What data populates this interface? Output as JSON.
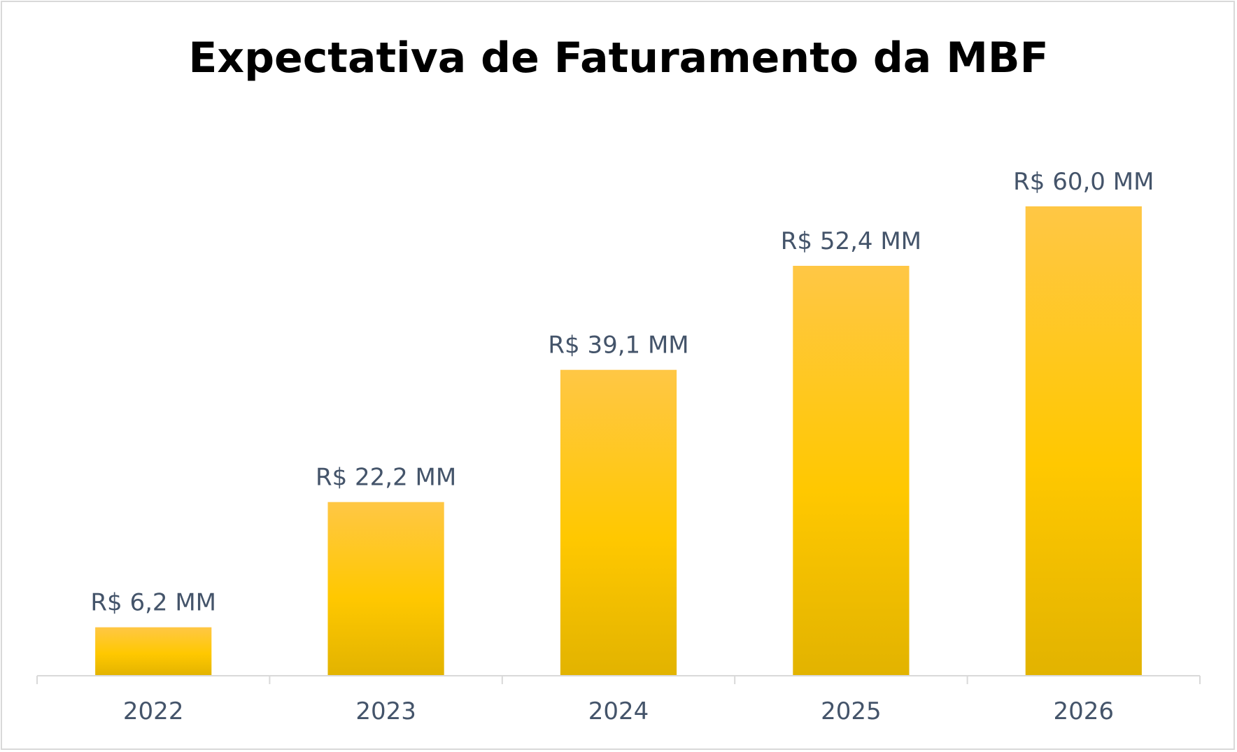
{
  "chart_data": {
    "type": "bar",
    "title": "Expectativa de Faturamento da MBF",
    "xlabel": "",
    "ylabel": "",
    "categories": [
      "2022",
      "2023",
      "2024",
      "2025",
      "2026"
    ],
    "values": [
      6.2,
      22.2,
      39.1,
      52.4,
      60.0
    ],
    "data_labels": [
      "R$ 6,2 MM",
      "R$ 22,2 MM",
      "R$ 39,1 MM",
      "R$ 52,4 MM",
      "R$ 60,0 MM"
    ],
    "ylim": [
      0,
      60
    ],
    "grid": false,
    "legend": "none",
    "colors": {
      "bar_top": "#ffc745",
      "bar_mid": "#ffc800",
      "bar_bottom": "#e2b300",
      "label": "#44546a",
      "axis": "#d9d9d9"
    }
  }
}
